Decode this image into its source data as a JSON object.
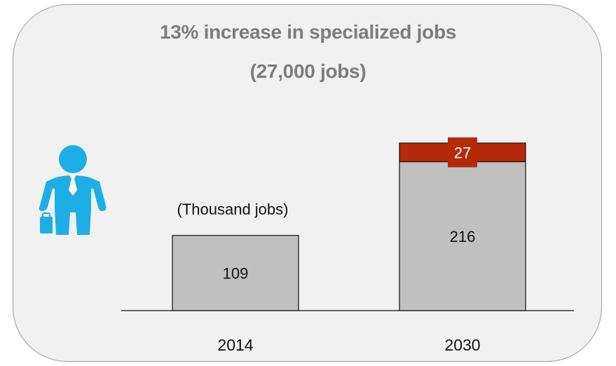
{
  "chart_data": {
    "type": "bar",
    "title": "13% increase in specialized jobs",
    "subtitle": "(27,000  jobs)",
    "unit_label": "(Thousand jobs)",
    "categories": [
      "2014",
      "2030"
    ],
    "series": [
      {
        "values": [
          109,
          216
        ],
        "color": "#c0c0c0"
      },
      {
        "values": [
          0,
          27
        ],
        "color": "#b52a08"
      }
    ],
    "ylim": [
      0,
      243
    ],
    "grid": false,
    "legend": "none"
  },
  "icon": {
    "name": "businessman-icon",
    "color": "#1eaee6"
  }
}
